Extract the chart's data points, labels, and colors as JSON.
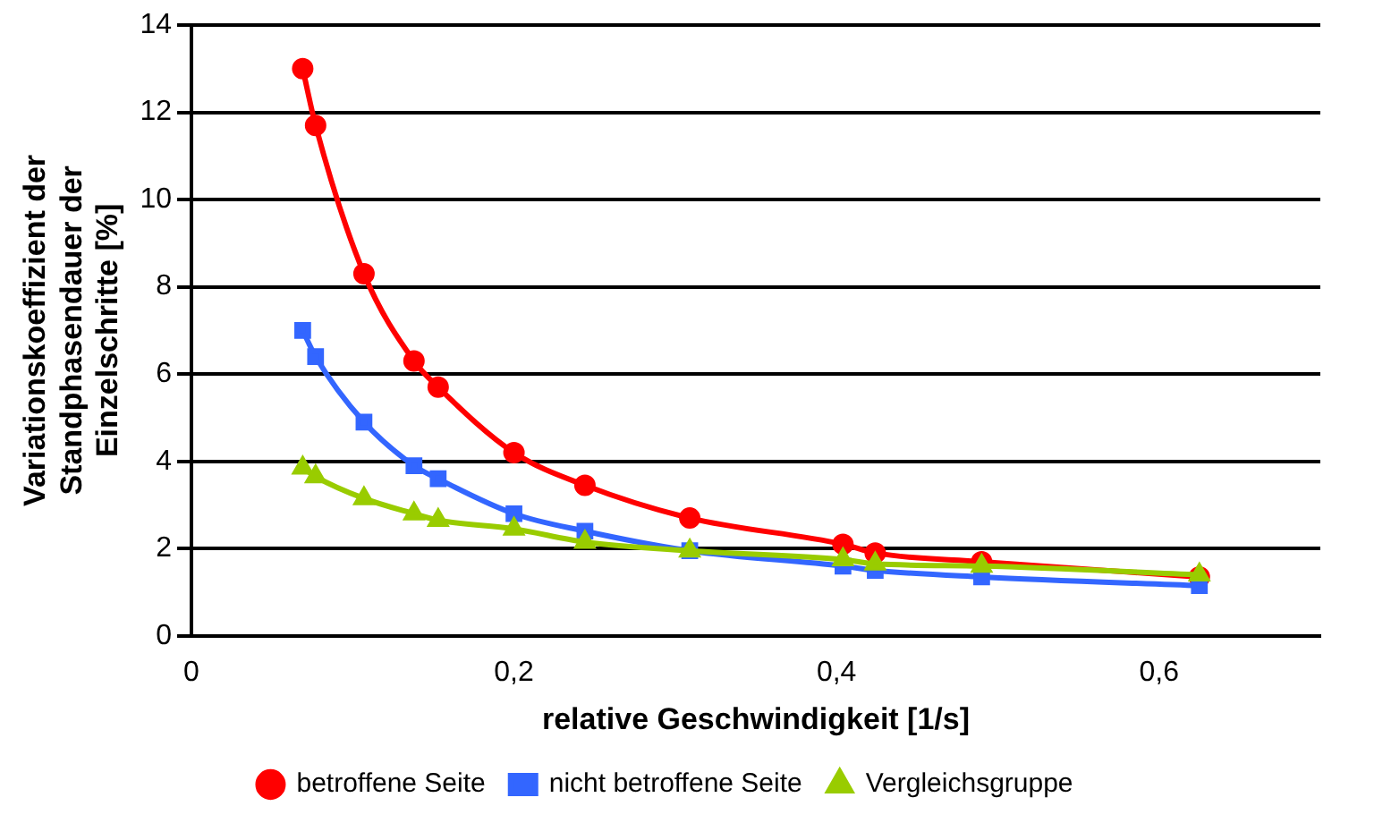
{
  "chart_data": {
    "type": "line",
    "xlabel": "relative Geschwindigkeit [1/s]",
    "ylabel": "Variationskoeffizient der\nStandphasendauer der\nEinzelschritte [%]",
    "xlim": [
      0,
      0.7
    ],
    "xticks": [
      0,
      {
        "value": 0.2,
        "label": "0,2"
      },
      {
        "value": 0.4,
        "label": "0,4"
      },
      {
        "value": 0.6,
        "label": "0,6"
      }
    ],
    "ylim": [
      0,
      14
    ],
    "yticks": [
      0,
      2,
      4,
      6,
      8,
      10,
      12,
      14
    ],
    "grid": "y",
    "legend": "bottom",
    "line_style": "solid",
    "x": [
      0.069,
      0.077,
      0.107,
      0.138,
      0.153,
      0.2,
      0.244,
      0.309,
      0.404,
      0.424,
      0.49,
      0.625
    ],
    "series": [
      {
        "name": "betroffene Seite",
        "color": "#ff0000",
        "marker": "circle",
        "values": [
          13,
          11.7,
          8.3,
          6.3,
          5.7,
          4.2,
          3.45,
          2.7,
          2.1,
          1.9,
          1.7,
          1.35
        ]
      },
      {
        "name": "nicht betroffene Seite",
        "color": "#3366ff",
        "marker": "square",
        "values": [
          7,
          6.4,
          4.9,
          3.9,
          3.6,
          2.8,
          2.4,
          1.95,
          1.6,
          1.5,
          1.35,
          1.15
        ]
      },
      {
        "name": "Vergleichsgruppe",
        "color": "#99cc00",
        "marker": "triangle",
        "values": [
          3.85,
          3.65,
          3.15,
          2.8,
          2.65,
          2.45,
          2.15,
          1.95,
          1.75,
          1.65,
          1.6,
          1.4
        ]
      }
    ]
  }
}
